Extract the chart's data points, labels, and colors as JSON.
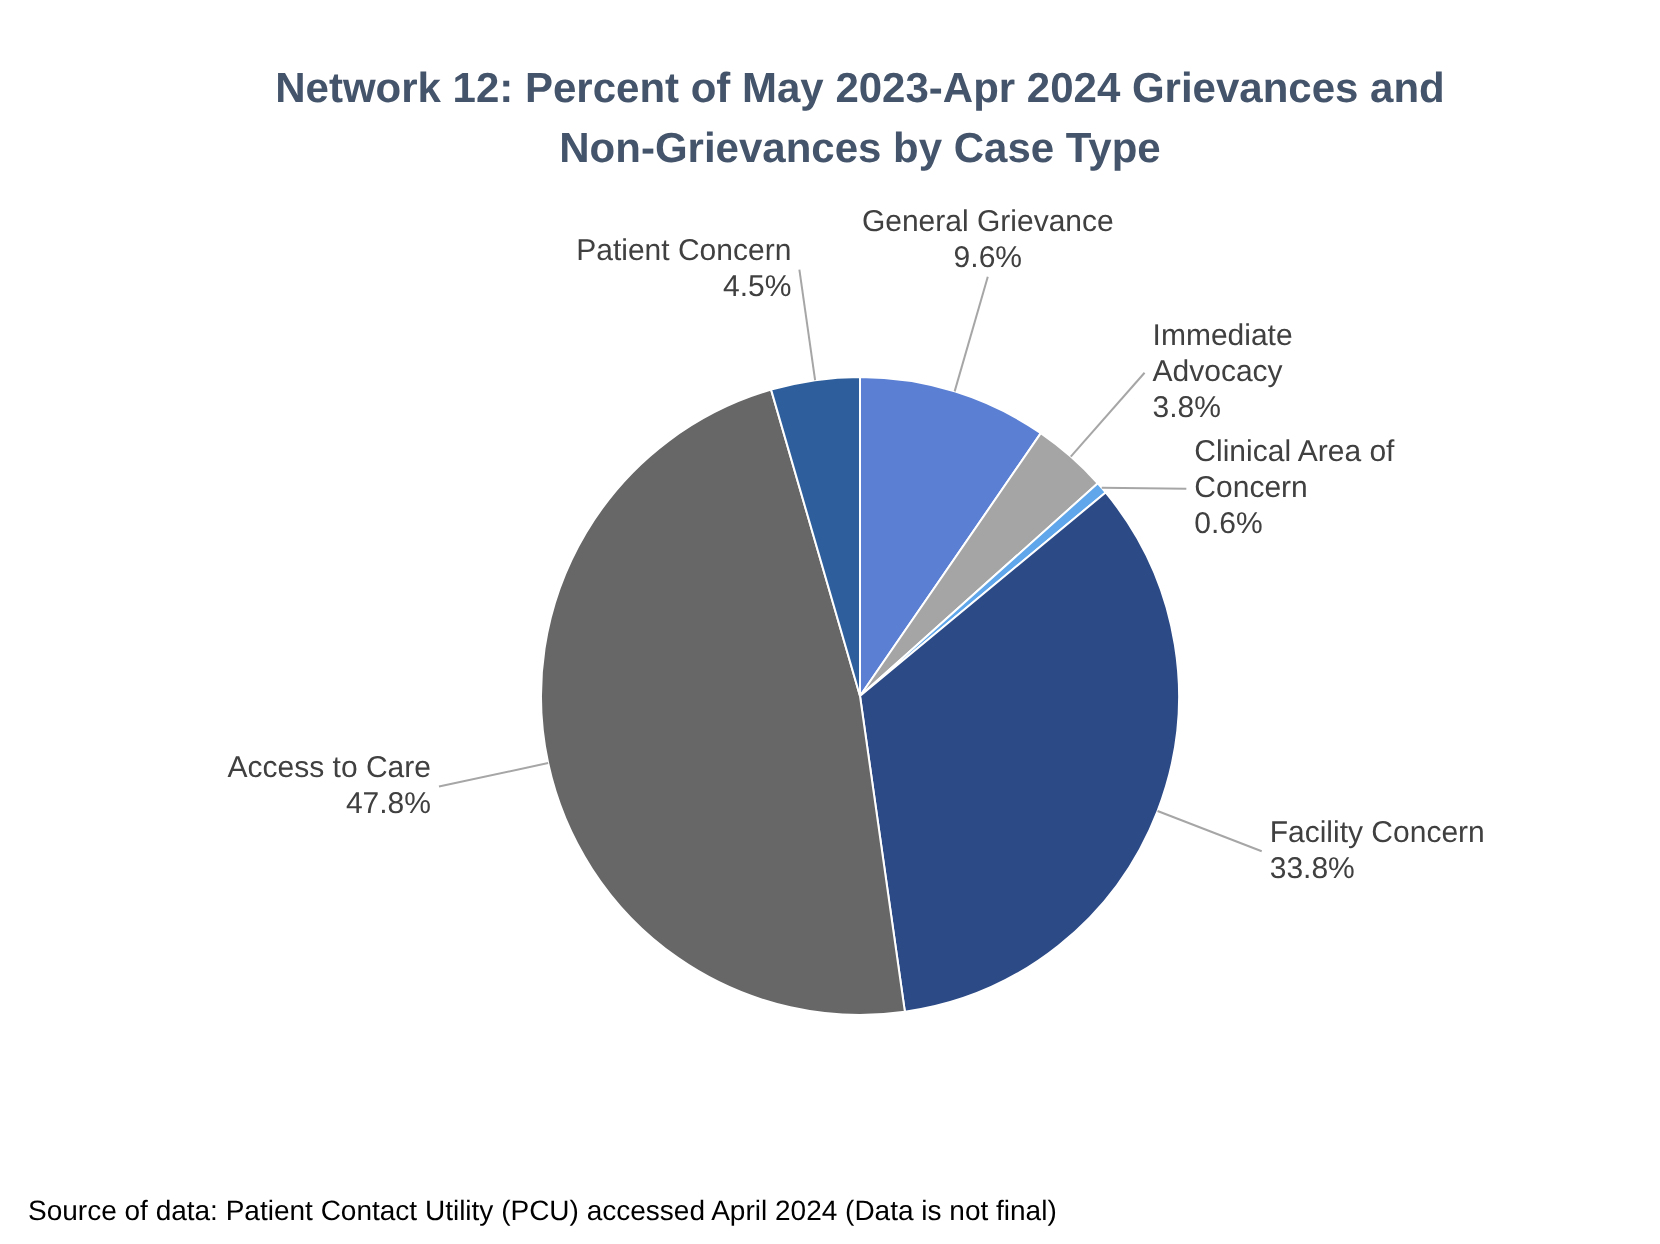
{
  "chart_data": {
    "type": "pie",
    "title": "Network 12: Percent of May 2023-Apr 2024 Grievances and Non-Grievances by Case Type",
    "categories": [
      "General Grievance",
      "Immediate Advocacy",
      "Clinical Area of Concern",
      "Facility Concern",
      "Access to Care",
      "Patient Concern"
    ],
    "values": [
      9.6,
      3.8,
      0.6,
      33.8,
      47.8,
      4.5
    ],
    "colors": [
      "#5b7fd3",
      "#a5a5a5",
      "#5fa7ea",
      "#2c4a86",
      "#676767",
      "#2e5f9c"
    ],
    "value_labels": [
      "9.6%",
      "3.8%",
      "0.6%",
      "33.8%",
      "47.8%",
      "4.5%"
    ],
    "legend": false,
    "annotations": [
      "Source of data:  Patient Contact Utility (PCU) accessed April 2024 (Data is not final)"
    ]
  }
}
